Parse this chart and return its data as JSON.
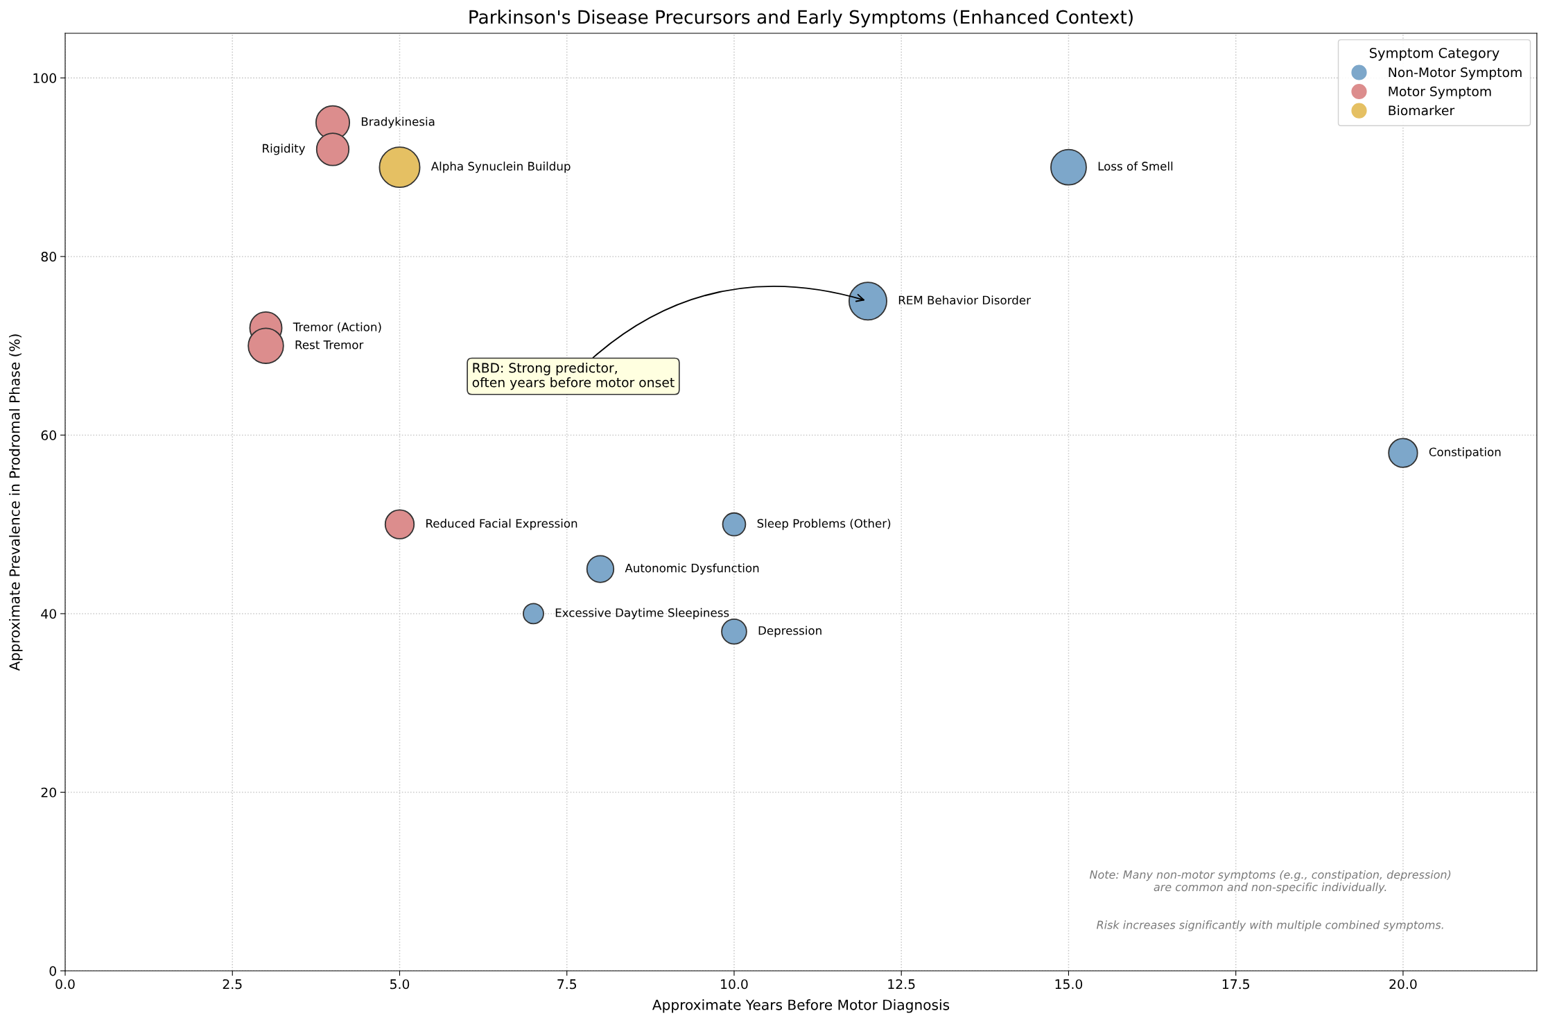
{
  "chart_data": {
    "type": "bubble",
    "title": "Parkinson's Disease Precursors and Early Symptoms (Enhanced Context)",
    "xlabel": "Approximate Years Before Motor Diagnosis",
    "ylabel": "Approximate Prevalence in Prodromal Phase (%)",
    "legend_title": "Symptom Category",
    "series": [
      {
        "name": "Non-Motor Symptom",
        "color": "#7da7ca",
        "x": [
          15,
          12,
          20,
          10,
          8,
          7,
          10
        ],
        "values": [
          90,
          75,
          58,
          50,
          45,
          40,
          38
        ],
        "sizes": [
          0.77,
          0.87,
          0.51,
          0.32,
          0.44,
          0.25,
          0.38
        ],
        "value_labels": [
          "Loss of Smell",
          "REM Behavior Disorder",
          "Constipation",
          "Sleep Problems (Other)",
          "Autonomic Dysfunction",
          "Excessive Daytime Sleepiness",
          "Depression"
        ]
      },
      {
        "name": "Motor Symptom",
        "color": "#dc8d8d",
        "x": [
          4,
          4,
          3,
          3,
          5
        ],
        "values": [
          95,
          92,
          72,
          70,
          50
        ],
        "sizes": [
          0.69,
          0.64,
          0.63,
          0.76,
          0.51
        ],
        "value_labels": [
          "Bradykinesia",
          "Rigidity",
          "Tremor (Action)",
          "Rest Tremor",
          "Reduced Facial Expression"
        ]
      },
      {
        "name": "Biomarker",
        "color": "#e5c063",
        "x": [
          5
        ],
        "values": [
          90
        ],
        "sizes": [
          1
        ],
        "value_labels": [
          "Alpha Synuclein Buildup"
        ]
      }
    ],
    "xlim": [
      0,
      22
    ],
    "xticks": [
      {
        "value": 0,
        "label": "0.0"
      },
      2.5,
      {
        "value": 5,
        "label": "5.0"
      },
      7.5,
      {
        "value": 10,
        "label": "10.0"
      },
      12.5,
      {
        "value": 15,
        "label": "15.0"
      },
      17.5,
      {
        "value": 20,
        "label": "20.0"
      }
    ],
    "ylim": [
      0,
      105
    ],
    "yticks": [
      0,
      20,
      40,
      60,
      80,
      100
    ],
    "annotations": [
      {
        "text": "RBD: Strong predictor,\noften years before motor onset",
        "x": 12,
        "y": 75
      },
      "Note: Many non-motor symptoms (e.g., constipation, depression)\nare common and non-specific individually.",
      "Risk increases significantly with multiple combined symptoms."
    ],
    "grid": true,
    "legend": "top right",
    "marker": "circle"
  }
}
